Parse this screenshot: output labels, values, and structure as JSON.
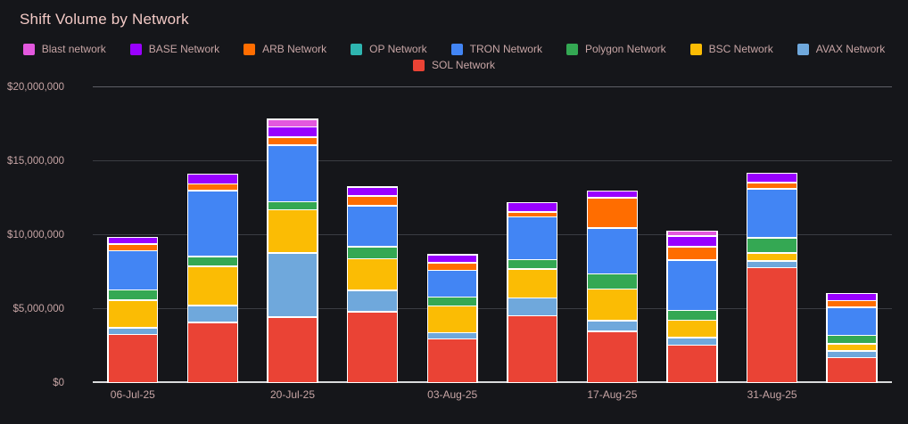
{
  "title": "Shift Volume by Network",
  "colors": {
    "blast": "#e358de",
    "base": "#9900ff",
    "arb": "#ff6d00",
    "op": "#2eb5b0",
    "tron": "#4285f4",
    "polygon": "#34a853",
    "bsc": "#fbbc04",
    "avax": "#6fa8dc",
    "sol": "#ea4335",
    "background": "#15161a",
    "title_text": "#f2c9c5",
    "axis_text": "#c7a5a5"
  },
  "legend": {
    "rows": [
      [
        {
          "label": "Blast network",
          "key": "blast"
        },
        {
          "label": "BASE Network",
          "key": "base"
        },
        {
          "label": "ARB Network",
          "key": "arb"
        },
        {
          "label": "OP Network",
          "key": "op"
        },
        {
          "label": "TRON Network",
          "key": "tron"
        },
        {
          "label": "Polygon Network",
          "key": "polygon"
        },
        {
          "label": "BSC Network",
          "key": "bsc"
        },
        {
          "label": "AVAX Network",
          "key": "avax"
        }
      ],
      [
        {
          "label": "SOL Network",
          "key": "sol"
        }
      ]
    ]
  },
  "chart_data": {
    "type": "bar",
    "stacked": true,
    "title": "Shift Volume by Network",
    "xlabel": "",
    "ylabel": "",
    "ylim": [
      0,
      20000000
    ],
    "grid": true,
    "legend_position": "top-center",
    "num_bars": 10,
    "yticks": [
      {
        "label": "$0",
        "value": 0
      },
      {
        "label": "$5,000,000",
        "value": 5000000
      },
      {
        "label": "$10,000,000",
        "value": 10000000
      },
      {
        "label": "$15,000,000",
        "value": 15000000
      },
      {
        "label": "$20,000,000",
        "value": 20000000
      }
    ],
    "xticks": [
      {
        "label": "06-Jul-25",
        "slot": 0
      },
      {
        "label": "20-Jul-25",
        "slot": 2
      },
      {
        "label": "03-Aug-25",
        "slot": 4
      },
      {
        "label": "17-Aug-25",
        "slot": 6
      },
      {
        "label": "31-Aug-25",
        "slot": 8
      }
    ],
    "series_bottom_to_top": [
      {
        "name": "SOL Network",
        "key": "sol",
        "values": [
          3400000,
          4160000,
          4520000,
          4940000,
          3100000,
          4700000,
          3550000,
          2620000,
          8070000,
          1810000
        ]
      },
      {
        "name": "AVAX Network",
        "key": "avax",
        "values": [
          370000,
          1110000,
          4460000,
          1450000,
          360000,
          1160000,
          670000,
          480000,
          380000,
          390000
        ]
      },
      {
        "name": "BSC Network",
        "key": "bsc",
        "values": [
          1920000,
          2710000,
          2950000,
          2170000,
          1870000,
          2010000,
          2190000,
          1180000,
          470000,
          450000
        ]
      },
      {
        "name": "Polygon Network",
        "key": "polygon",
        "values": [
          670000,
          600000,
          480000,
          750000,
          570000,
          560000,
          970000,
          610000,
          990000,
          540000
        ]
      },
      {
        "name": "TRON Network",
        "key": "tron",
        "values": [
          2770000,
          4610000,
          3920000,
          2830000,
          1870000,
          2970000,
          3190000,
          3600000,
          3400000,
          2050000
        ]
      },
      {
        "name": "OP Network",
        "key": "op",
        "values": [
          0,
          0,
          0,
          0,
          0,
          0,
          0,
          0,
          0,
          0
        ]
      },
      {
        "name": "ARB Network",
        "key": "arb",
        "values": [
          360000,
          390000,
          480000,
          630000,
          450000,
          260000,
          2080000,
          880000,
          350000,
          420000
        ]
      },
      {
        "name": "BASE Network",
        "key": "base",
        "values": [
          420000,
          580000,
          630000,
          540000,
          510000,
          570000,
          390000,
          690000,
          560000,
          450000
        ]
      },
      {
        "name": "Blast network",
        "key": "blast",
        "values": [
          0,
          0,
          450000,
          0,
          0,
          0,
          0,
          270000,
          0,
          0
        ]
      }
    ]
  }
}
